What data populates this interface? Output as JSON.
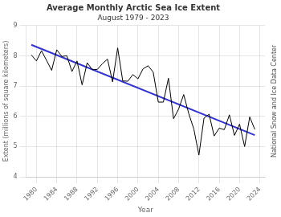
{
  "chart_data": {
    "type": "line",
    "title": "Average Monthly Arctic Sea Ice Extent",
    "subtitle": "August 1979 - 2023",
    "xlabel": "Year",
    "ylabel": "Extent (millions of square kilometers)",
    "annotations": [
      "National Snow and Ice Data Center"
    ],
    "series": [
      {
        "color": "#000000",
        "x": [
          1979,
          1980,
          1981,
          1982,
          1983,
          1984,
          1985,
          1986,
          1987,
          1988,
          1989,
          1990,
          1991,
          1992,
          1993,
          1994,
          1995,
          1996,
          1997,
          1998,
          1999,
          2000,
          2001,
          2002,
          2003,
          2004,
          2005,
          2006,
          2007,
          2008,
          2009,
          2010,
          2011,
          2012,
          2013,
          2014,
          2015,
          2016,
          2017,
          2018,
          2019,
          2020,
          2021,
          2022,
          2023
        ],
        "values": [
          8.03,
          7.83,
          8.17,
          7.85,
          7.52,
          8.2,
          7.98,
          8.0,
          7.48,
          7.83,
          7.04,
          7.77,
          7.54,
          7.55,
          7.74,
          7.89,
          7.14,
          8.26,
          7.17,
          7.16,
          7.38,
          7.24,
          7.57,
          7.67,
          7.46,
          6.47,
          6.47,
          7.26,
          5.92,
          6.24,
          6.72,
          6.09,
          5.58,
          4.72,
          5.94,
          6.07,
          5.35,
          5.61,
          5.56,
          6.05,
          5.37,
          5.74,
          5.0,
          5.98,
          5.57
        ]
      },
      {
        "color": "#3333cc",
        "x": [
          1979,
          2023
        ],
        "values": [
          8.36278,
          5.37855
        ]
      }
    ],
    "xlim": [
      1978,
      2025
    ],
    "xticks": [
      1980,
      1984,
      1988,
      1992,
      1996,
      2000,
      2004,
      2008,
      2012,
      2016,
      2020,
      2024
    ],
    "ylim": [
      4,
      9
    ],
    "yticks": [
      4,
      5,
      6,
      7,
      8,
      9
    ],
    "grid": true
  }
}
